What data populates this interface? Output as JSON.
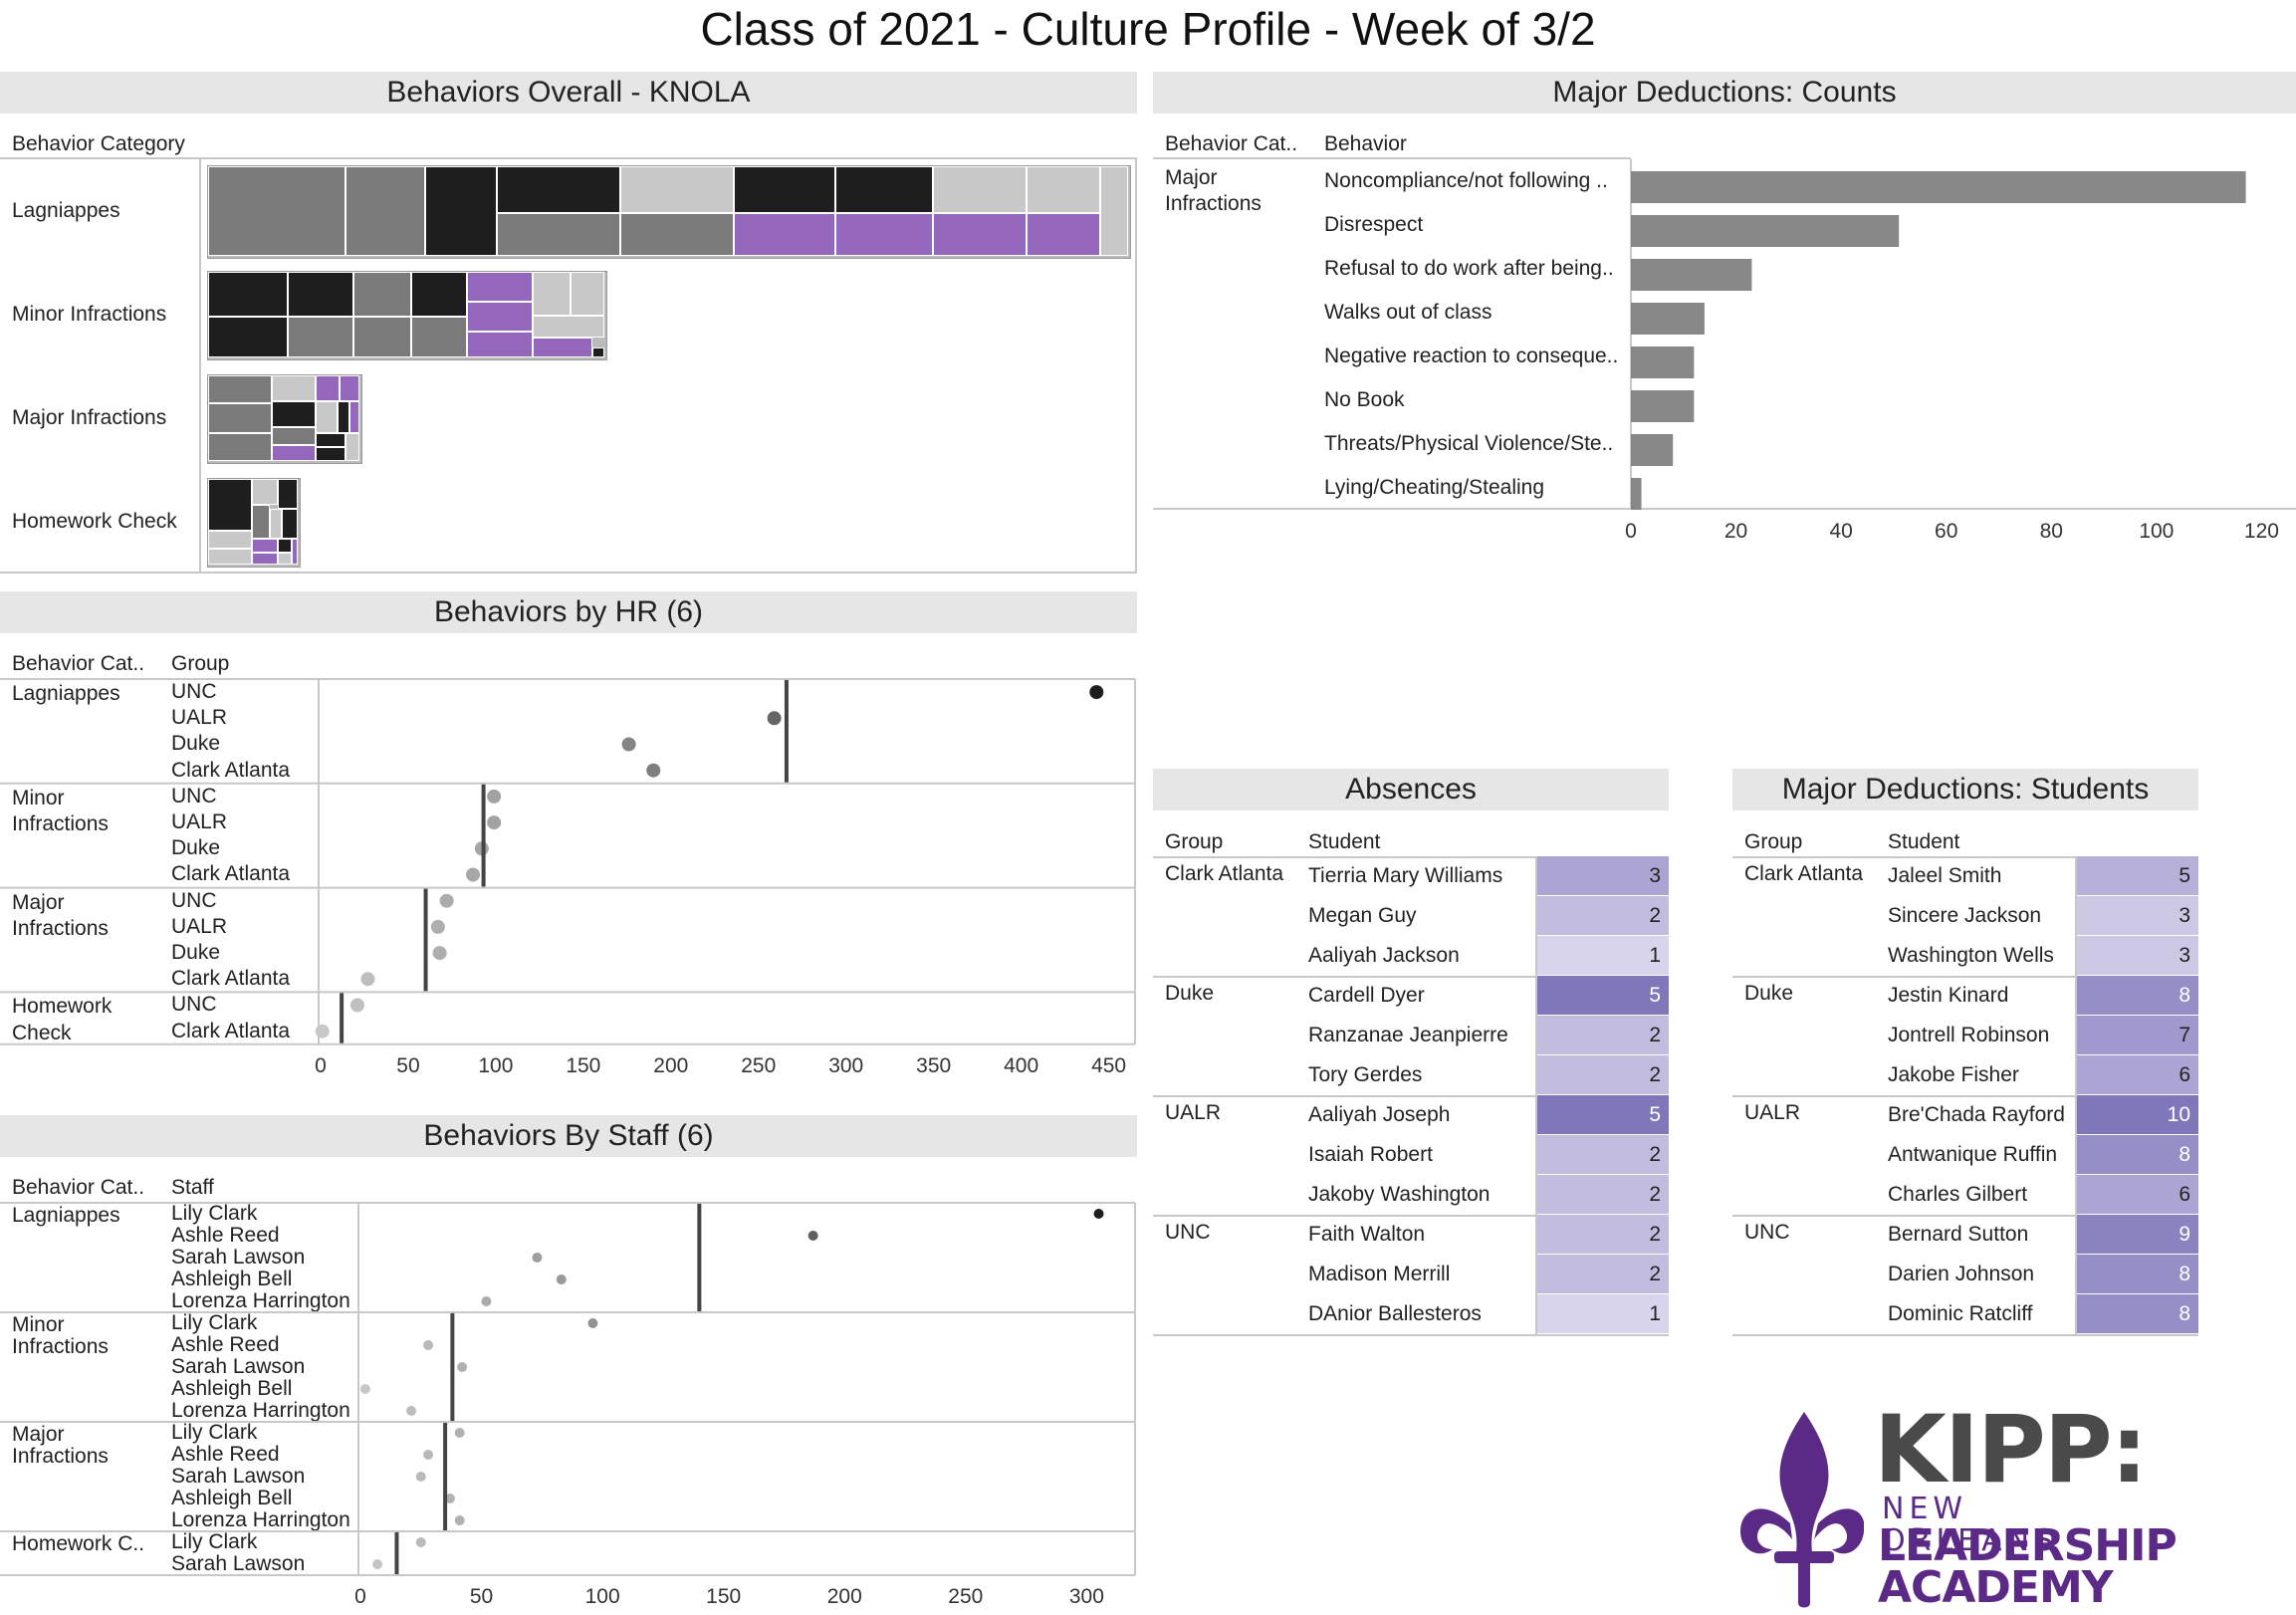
{
  "page_title": "Class of 2021 - Culture Profile - Week of 3/2",
  "panels": {
    "overall": {
      "title": "Behaviors Overall - KNOLA",
      "header": "Behavior Category",
      "rows": [
        "Lagniappes",
        "Minor Infractions",
        "Major Infractions",
        "Homework Check"
      ]
    },
    "deductions_counts": {
      "title": "Major Deductions: Counts",
      "header_cat": "Behavior Cat..",
      "header_beh": "Behavior",
      "category": "Major Infractions"
    },
    "by_hr": {
      "title": "Behaviors by HR (6)",
      "header_cat": "Behavior Cat..",
      "header_group": "Group"
    },
    "by_staff": {
      "title": "Behaviors By Staff (6)",
      "header_cat": "Behavior Cat..",
      "header_staff": "Staff"
    },
    "absences": {
      "title": "Absences",
      "header_group": "Group",
      "header_student": "Student"
    },
    "deductions_students": {
      "title": "Major Deductions: Students",
      "header_group": "Group",
      "header_student": "Student"
    }
  },
  "logo": {
    "text_top": "KIPP:",
    "text_mid": "NEW ORLEANS",
    "text_bot1": "LEADERSHIP",
    "text_bot2": "ACADEMY",
    "color": "#5b2a86",
    "gray": "#4a4a4a"
  },
  "colors": {
    "black": "#1e1e1e",
    "dark_gray": "#7a7a7a",
    "light_gray": "#c8c8c8",
    "purple": "#9467bd",
    "bar_gray": "#888888"
  },
  "chart_data": [
    {
      "type": "treemap",
      "title": "Behaviors Overall - KNOLA",
      "categories": [
        "Lagniappes",
        "Minor Infractions",
        "Major Infractions",
        "Homework Check"
      ],
      "relative_size": [
        1.0,
        0.43,
        0.17,
        0.1
      ]
    },
    {
      "type": "bar",
      "title": "Major Deductions: Counts",
      "categories": [
        "Noncompliance/not following ..",
        "Disrespect",
        "Refusal to do work after being..",
        "Walks out of class",
        "Negative reaction to conseque..",
        "No Book",
        "Threats/Physical Violence/Ste..",
        "Lying/Cheating/Stealing"
      ],
      "values": [
        117,
        51,
        23,
        14,
        12,
        12,
        8,
        2
      ],
      "xlim": [
        0,
        122
      ],
      "ticks": [
        0,
        20,
        40,
        60,
        80,
        100,
        120
      ]
    },
    {
      "type": "scatter",
      "title": "Behaviors by HR (6)",
      "xlim": [
        0,
        465
      ],
      "ticks": [
        0,
        50,
        100,
        150,
        200,
        250,
        300,
        350,
        400,
        450
      ],
      "groups": [
        {
          "category": "Lagniappes",
          "mean": 266,
          "items": [
            {
              "name": "UNC",
              "value": 443
            },
            {
              "name": "UALR",
              "value": 259
            },
            {
              "name": "Duke",
              "value": 176
            },
            {
              "name": "Clark Atlanta",
              "value": 190
            }
          ]
        },
        {
          "category": "Minor Infractions",
          "mean": 93,
          "items": [
            {
              "name": "UNC",
              "value": 99
            },
            {
              "name": "UALR",
              "value": 99
            },
            {
              "name": "Duke",
              "value": 92
            },
            {
              "name": "Clark Atlanta",
              "value": 87
            }
          ]
        },
        {
          "category": "Major Infractions",
          "mean": 60,
          "items": [
            {
              "name": "UNC",
              "value": 72
            },
            {
              "name": "UALR",
              "value": 67
            },
            {
              "name": "Duke",
              "value": 68
            },
            {
              "name": "Clark Atlanta",
              "value": 27
            }
          ]
        },
        {
          "category": "Homework Check",
          "mean": 12,
          "items": [
            {
              "name": "UNC",
              "value": 21
            },
            {
              "name": "Clark Atlanta",
              "value": 1
            }
          ]
        }
      ]
    },
    {
      "type": "scatter",
      "title": "Behaviors By Staff (6)",
      "xlim": [
        0,
        320
      ],
      "ticks": [
        0,
        50,
        100,
        150,
        200,
        250,
        300
      ],
      "groups": [
        {
          "category": "Lagniappes",
          "mean": 140,
          "items": [
            {
              "name": "Lily Clark",
              "value": 305
            },
            {
              "name": "Ashle Reed",
              "value": 187
            },
            {
              "name": "Sarah Lawson",
              "value": 73
            },
            {
              "name": "Ashleigh Bell",
              "value": 83
            },
            {
              "name": "Lorenza Harrington",
              "value": 52
            }
          ]
        },
        {
          "category": "Minor Infractions",
          "mean": 38,
          "items": [
            {
              "name": "Lily Clark",
              "value": 96
            },
            {
              "name": "Ashle Reed",
              "value": 28
            },
            {
              "name": "Sarah Lawson",
              "value": 42
            },
            {
              "name": "Ashleigh Bell",
              "value": 2
            },
            {
              "name": "Lorenza Harrington",
              "value": 21
            }
          ]
        },
        {
          "category": "Major Infractions",
          "mean": 35,
          "items": [
            {
              "name": "Lily Clark",
              "value": 41
            },
            {
              "name": "Ashle Reed",
              "value": 28
            },
            {
              "name": "Sarah Lawson",
              "value": 25
            },
            {
              "name": "Ashleigh Bell",
              "value": 37
            },
            {
              "name": "Lorenza Harrington",
              "value": 41
            }
          ]
        },
        {
          "category": "Homework C..",
          "mean": 15,
          "items": [
            {
              "name": "Lily Clark",
              "value": 25
            },
            {
              "name": "Sarah Lawson",
              "value": 7
            }
          ]
        }
      ]
    },
    {
      "type": "table",
      "title": "Absences",
      "groups": [
        {
          "group": "Clark Atlanta",
          "rows": [
            {
              "student": "Tierria Mary Williams",
              "value": 3
            },
            {
              "student": "Megan Guy",
              "value": 2
            },
            {
              "student": "Aaliyah Jackson",
              "value": 1
            }
          ]
        },
        {
          "group": "Duke",
          "rows": [
            {
              "student": "Cardell Dyer",
              "value": 5
            },
            {
              "student": "Ranzanae Jeanpierre",
              "value": 2
            },
            {
              "student": "Tory Gerdes",
              "value": 2
            }
          ]
        },
        {
          "group": "UALR",
          "rows": [
            {
              "student": "Aaliyah Joseph",
              "value": 5
            },
            {
              "student": "Isaiah Robert",
              "value": 2
            },
            {
              "student": "Jakoby Washington",
              "value": 2
            }
          ]
        },
        {
          "group": "UNC",
          "rows": [
            {
              "student": "Faith Walton",
              "value": 2
            },
            {
              "student": "Madison Merrill",
              "value": 2
            },
            {
              "student": "DAnior Ballesteros",
              "value": 1
            }
          ]
        }
      ]
    },
    {
      "type": "table",
      "title": "Major Deductions: Students",
      "groups": [
        {
          "group": "Clark Atlanta",
          "rows": [
            {
              "student": "Jaleel Smith",
              "value": 5
            },
            {
              "student": "Sincere Jackson",
              "value": 3
            },
            {
              "student": "Washington Wells",
              "value": 3
            }
          ]
        },
        {
          "group": "Duke",
          "rows": [
            {
              "student": "Jestin Kinard",
              "value": 8
            },
            {
              "student": "Jontrell Robinson",
              "value": 7
            },
            {
              "student": "Jakobe Fisher",
              "value": 6
            }
          ]
        },
        {
          "group": "UALR",
          "rows": [
            {
              "student": "Bre'Chada Rayford",
              "value": 10
            },
            {
              "student": "Antwanique Ruffin",
              "value": 8
            },
            {
              "student": "Charles Gilbert",
              "value": 6
            }
          ]
        },
        {
          "group": "UNC",
          "rows": [
            {
              "student": "Bernard Sutton",
              "value": 9
            },
            {
              "student": "Darien Johnson",
              "value": 8
            },
            {
              "student": "Dominic Ratcliff",
              "value": 8
            }
          ]
        }
      ]
    }
  ]
}
